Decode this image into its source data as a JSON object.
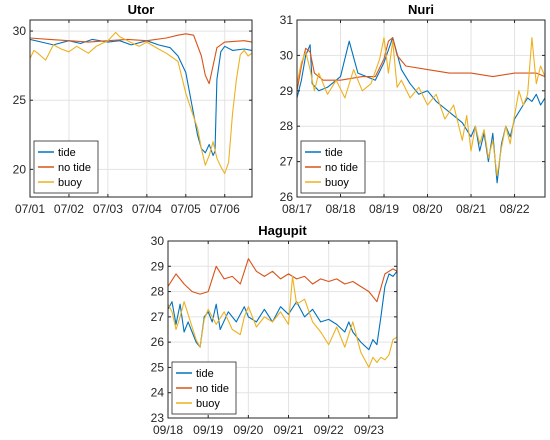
{
  "chart_data": [
    {
      "type": "line",
      "title": "Utor",
      "xlabel": "",
      "ylabel": "",
      "x_ticks": [
        "07/01",
        "07/02",
        "07/03",
        "07/04",
        "07/05",
        "07/06"
      ],
      "xlim": [
        0,
        5.7
      ],
      "ylim": [
        18,
        30.8
      ],
      "y_ticks": [
        20,
        25,
        30
      ],
      "grid": true,
      "legend": {
        "position": "bottom-left",
        "entries": [
          "tide",
          "no tide",
          "buoy"
        ]
      },
      "colors": {
        "tide": "#0072BD",
        "no tide": "#D95319",
        "buoy": "#EDB120"
      },
      "series": [
        {
          "name": "tide",
          "x": [
            0,
            0.3,
            0.6,
            1.0,
            1.3,
            1.6,
            2.0,
            2.3,
            2.6,
            3.0,
            3.3,
            3.6,
            3.8,
            4.0,
            4.1,
            4.2,
            4.3,
            4.4,
            4.5,
            4.6,
            4.7,
            4.75,
            4.8,
            4.9,
            5.0,
            5.2,
            5.5,
            5.7
          ],
          "y": [
            29.4,
            29.2,
            29.0,
            29.3,
            29.1,
            29.4,
            29.2,
            29.3,
            29.0,
            29.3,
            29.0,
            28.8,
            28.2,
            27.0,
            25.5,
            24.0,
            22.5,
            21.5,
            21.2,
            21.8,
            21.0,
            21.3,
            26.5,
            28.5,
            28.9,
            28.6,
            28.7,
            28.6
          ]
        },
        {
          "name": "no tide",
          "x": [
            0,
            0.5,
            1.0,
            1.5,
            2.0,
            2.5,
            3.0,
            3.5,
            3.8,
            4.0,
            4.2,
            4.4,
            4.5,
            4.6,
            4.7,
            4.8,
            5.0,
            5.5,
            5.7
          ],
          "y": [
            29.5,
            29.4,
            29.3,
            29.2,
            29.3,
            29.4,
            29.3,
            29.5,
            29.7,
            29.8,
            29.7,
            28.2,
            26.8,
            26.2,
            27.5,
            28.8,
            29.2,
            29.3,
            29.2
          ]
        },
        {
          "name": "buoy",
          "x": [
            0,
            0.1,
            0.2,
            0.4,
            0.6,
            0.8,
            1.0,
            1.2,
            1.5,
            1.7,
            2.0,
            2.2,
            2.3,
            2.5,
            2.8,
            3.0,
            3.3,
            3.5,
            3.8,
            4.0,
            4.2,
            4.3,
            4.4,
            4.5,
            4.6,
            4.7,
            4.8,
            4.9,
            5.0,
            5.1,
            5.2,
            5.3,
            5.4,
            5.5,
            5.6,
            5.7
          ],
          "y": [
            28.0,
            28.6,
            28.4,
            27.9,
            29.0,
            28.7,
            28.5,
            28.9,
            28.4,
            28.9,
            29.3,
            29.9,
            29.6,
            29.3,
            28.9,
            29.2,
            28.7,
            28.4,
            27.8,
            25.5,
            23.8,
            23.0,
            21.5,
            20.3,
            21.0,
            22.0,
            20.8,
            20.2,
            19.7,
            20.5,
            24.0,
            26.5,
            28.3,
            28.6,
            28.2,
            28.4
          ]
        }
      ]
    },
    {
      "type": "line",
      "title": "Nuri",
      "xlabel": "",
      "ylabel": "",
      "x_ticks": [
        "08/17",
        "08/18",
        "08/19",
        "08/20",
        "08/21",
        "08/22"
      ],
      "xlim": [
        0,
        5.7
      ],
      "ylim": [
        26,
        31
      ],
      "y_ticks": [
        26,
        27,
        28,
        29,
        30,
        31
      ],
      "grid": true,
      "legend": {
        "position": "bottom-left",
        "entries": [
          "tide",
          "no tide",
          "buoy"
        ]
      },
      "colors": {
        "tide": "#0072BD",
        "no tide": "#D95319",
        "buoy": "#EDB120"
      },
      "series": [
        {
          "name": "tide",
          "x": [
            0,
            0.1,
            0.2,
            0.3,
            0.35,
            0.5,
            0.7,
            1.0,
            1.2,
            1.4,
            1.6,
            1.8,
            2.0,
            2.2,
            2.4,
            2.6,
            2.8,
            3.0,
            3.2,
            3.4,
            3.6,
            3.8,
            4.0,
            4.1,
            4.2,
            4.3,
            4.4,
            4.5,
            4.6,
            4.7,
            4.8,
            4.9,
            5.0,
            5.2,
            5.3,
            5.4,
            5.5,
            5.6,
            5.7
          ],
          "y": [
            28.8,
            29.3,
            30.0,
            30.3,
            29.2,
            29.0,
            29.1,
            29.4,
            30.4,
            29.5,
            29.4,
            29.3,
            29.8,
            30.5,
            29.6,
            29.2,
            28.9,
            29.0,
            28.7,
            28.5,
            28.3,
            28.1,
            27.7,
            28.0,
            27.3,
            27.8,
            27.0,
            27.8,
            26.4,
            27.5,
            28.0,
            27.7,
            28.2,
            28.6,
            28.8,
            28.7,
            28.9,
            28.6,
            28.8
          ]
        },
        {
          "name": "no tide",
          "x": [
            0,
            0.1,
            0.2,
            0.3,
            0.4,
            0.6,
            1.0,
            1.5,
            1.8,
            2.0,
            2.1,
            2.2,
            2.3,
            2.5,
            3.0,
            3.5,
            4.0,
            4.5,
            5.0,
            5.5,
            5.7
          ],
          "y": [
            29.0,
            29.7,
            30.2,
            30.1,
            29.5,
            29.3,
            29.3,
            29.4,
            29.4,
            29.9,
            30.4,
            30.5,
            30.0,
            29.7,
            29.6,
            29.5,
            29.5,
            29.4,
            29.5,
            29.5,
            29.4
          ]
        },
        {
          "name": "buoy",
          "x": [
            0,
            0.1,
            0.2,
            0.3,
            0.4,
            0.5,
            0.7,
            0.9,
            1.1,
            1.3,
            1.5,
            1.7,
            1.9,
            2.0,
            2.1,
            2.2,
            2.3,
            2.4,
            2.6,
            2.8,
            3.0,
            3.2,
            3.4,
            3.6,
            3.8,
            3.9,
            4.0,
            4.1,
            4.2,
            4.3,
            4.4,
            4.5,
            4.6,
            4.7,
            4.8,
            4.9,
            5.0,
            5.1,
            5.2,
            5.3,
            5.4,
            5.5,
            5.6,
            5.7
          ],
          "y": [
            29.2,
            29.8,
            30.1,
            29.6,
            29.0,
            29.5,
            28.9,
            29.3,
            28.8,
            29.6,
            29.0,
            29.2,
            29.9,
            30.5,
            29.5,
            30.4,
            29.1,
            29.3,
            28.8,
            29.1,
            28.6,
            28.9,
            28.2,
            28.6,
            27.6,
            28.3,
            27.3,
            28.0,
            27.5,
            27.9,
            27.1,
            27.6,
            26.6,
            27.4,
            28.0,
            27.5,
            28.3,
            29.0,
            28.6,
            28.9,
            30.5,
            29.2,
            29.7,
            29.4
          ]
        }
      ]
    },
    {
      "type": "line",
      "title": "Hagupit",
      "xlabel": "",
      "ylabel": "",
      "x_ticks": [
        "09/18",
        "09/19",
        "09/20",
        "09/21",
        "09/22",
        "09/23"
      ],
      "xlim": [
        0,
        5.7
      ],
      "ylim": [
        23,
        30
      ],
      "y_ticks": [
        23,
        24,
        25,
        26,
        27,
        28,
        29,
        30
      ],
      "grid": true,
      "legend": {
        "position": "bottom-left",
        "entries": [
          "tide",
          "no tide",
          "buoy"
        ]
      },
      "colors": {
        "tide": "#0072BD",
        "no tide": "#D95319",
        "buoy": "#EDB120"
      },
      "series": [
        {
          "name": "tide",
          "x": [
            0,
            0.1,
            0.2,
            0.3,
            0.4,
            0.5,
            0.6,
            0.7,
            0.8,
            0.9,
            1.0,
            1.1,
            1.2,
            1.3,
            1.5,
            1.7,
            1.9,
            2.0,
            2.2,
            2.4,
            2.6,
            2.8,
            3.0,
            3.2,
            3.4,
            3.6,
            3.8,
            4.0,
            4.2,
            4.4,
            4.5,
            4.6,
            4.8,
            5.0,
            5.1,
            5.2,
            5.3,
            5.4,
            5.5,
            5.6,
            5.7
          ],
          "y": [
            27.3,
            27.6,
            26.7,
            27.5,
            26.4,
            26.8,
            26.4,
            26.0,
            25.8,
            27.0,
            27.2,
            26.8,
            27.5,
            26.5,
            27.2,
            26.8,
            27.4,
            27.0,
            26.8,
            27.3,
            26.8,
            27.4,
            27.1,
            27.6,
            27.0,
            27.3,
            26.8,
            26.9,
            26.7,
            26.4,
            26.8,
            26.4,
            26.0,
            25.7,
            26.1,
            25.9,
            27.0,
            28.2,
            28.7,
            28.6,
            28.8
          ]
        },
        {
          "name": "no tide",
          "x": [
            0,
            0.2,
            0.4,
            0.6,
            0.8,
            1.0,
            1.2,
            1.4,
            1.6,
            1.8,
            2.0,
            2.2,
            2.4,
            2.6,
            2.8,
            3.0,
            3.2,
            3.4,
            3.6,
            3.8,
            4.0,
            4.2,
            4.4,
            4.6,
            4.8,
            5.0,
            5.2,
            5.4,
            5.6,
            5.7
          ],
          "y": [
            28.2,
            28.7,
            28.3,
            28.0,
            27.9,
            28.0,
            29.0,
            28.5,
            28.6,
            28.3,
            29.3,
            28.8,
            28.6,
            28.8,
            28.5,
            28.7,
            28.5,
            28.6,
            28.3,
            28.5,
            28.4,
            28.5,
            28.3,
            28.4,
            28.2,
            28.0,
            27.6,
            28.7,
            28.9,
            28.8
          ]
        },
        {
          "name": "buoy",
          "x": [
            0,
            0.1,
            0.2,
            0.3,
            0.4,
            0.5,
            0.6,
            0.7,
            0.8,
            0.9,
            1.0,
            1.2,
            1.4,
            1.6,
            1.8,
            1.9,
            2.0,
            2.2,
            2.4,
            2.6,
            2.8,
            3.0,
            3.1,
            3.2,
            3.4,
            3.6,
            3.8,
            4.0,
            4.2,
            4.4,
            4.6,
            4.8,
            5.0,
            5.1,
            5.2,
            5.3,
            5.4,
            5.5,
            5.6,
            5.7
          ],
          "y": [
            27.5,
            27.2,
            26.5,
            27.0,
            27.6,
            27.1,
            26.6,
            26.1,
            25.8,
            26.9,
            27.3,
            26.7,
            27.2,
            26.5,
            26.3,
            27.0,
            27.4,
            26.6,
            27.0,
            26.8,
            27.2,
            26.7,
            28.6,
            27.5,
            27.7,
            26.8,
            26.4,
            25.9,
            26.6,
            25.8,
            26.8,
            25.6,
            25.0,
            25.4,
            25.2,
            25.4,
            25.3,
            25.5,
            26.1,
            26.2
          ]
        }
      ]
    }
  ]
}
